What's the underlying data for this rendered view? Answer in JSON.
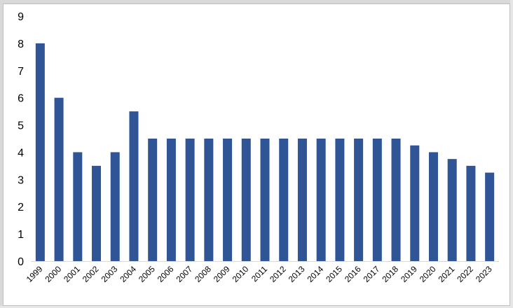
{
  "chart_data": {
    "type": "bar",
    "title": "",
    "xlabel": "",
    "ylabel": "",
    "categories": [
      "1999",
      "2000",
      "2001",
      "2002",
      "2003",
      "2004",
      "2005",
      "2006",
      "2007",
      "2008",
      "2009",
      "2010",
      "2011",
      "2012",
      "2013",
      "2014",
      "2015",
      "2016",
      "2017",
      "2018",
      "2019",
      "2020",
      "2021",
      "2022",
      "2023"
    ],
    "values": [
      8,
      6,
      4,
      3.5,
      4,
      5.5,
      4.5,
      4.5,
      4.5,
      4.5,
      4.5,
      4.5,
      4.5,
      4.5,
      4.5,
      4.5,
      4.5,
      4.5,
      4.5,
      4.5,
      4.25,
      4,
      3.75,
      3.5,
      3.25
    ],
    "ylim": [
      0,
      9
    ],
    "yticks": [
      "0",
      "1",
      "2",
      "3",
      "4",
      "5",
      "6",
      "7",
      "8",
      "9"
    ],
    "grid": false,
    "legend": "none",
    "bar_color": "#2f5597",
    "axis_color": "#d9d9d9"
  }
}
